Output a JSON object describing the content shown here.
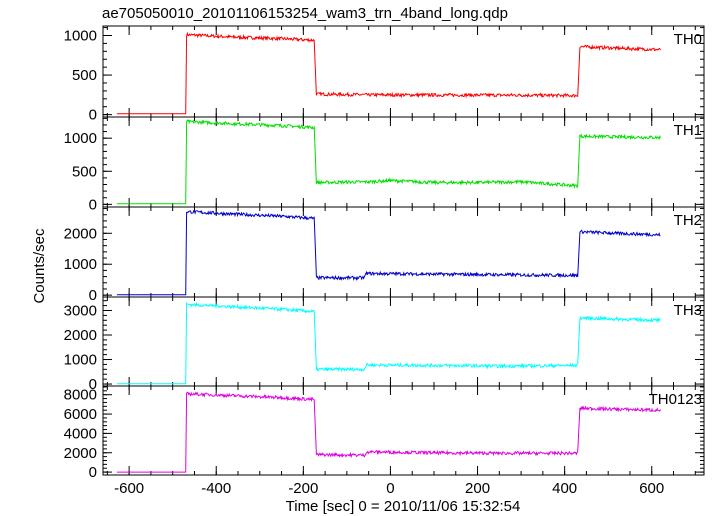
{
  "chart_data": {
    "type": "line",
    "title": "ae705050010_20101106153254_wam3_trn_4band_long.qdp",
    "xlabel": "Time [sec] 0 = 2010/11/06 15:32:54",
    "ylabel": "Counts/sec",
    "xlim": [
      -660,
      720
    ],
    "xticks": [
      -600,
      -400,
      -200,
      0,
      200,
      400,
      600
    ],
    "grid": false,
    "panels": [
      {
        "name": "TH0",
        "color": "#ff0000",
        "ylim": [
          -30,
          1120
        ],
        "yticks": [
          0,
          500,
          1000
        ],
        "segments": [
          {
            "x": [
              -628,
              -470
            ],
            "y": [
              10,
              10
            ]
          },
          {
            "x": [
              -468,
              -360,
              -250,
              -175
            ],
            "y": [
              1010,
              980,
              960,
              940
            ]
          },
          {
            "x": [
              -170,
              -50,
              100,
              300,
              430
            ],
            "y": [
              260,
              250,
              248,
              246,
              240
            ]
          },
          {
            "x": [
              435,
              520,
              620
            ],
            "y": [
              860,
              840,
              820
            ]
          }
        ]
      },
      {
        "name": "TH1",
        "color": "#00e000",
        "ylim": [
          -40,
          1320
        ],
        "yticks": [
          0,
          500,
          1000
        ],
        "segments": [
          {
            "x": [
              -628,
              -470
            ],
            "y": [
              10,
              10
            ]
          },
          {
            "x": [
              -468,
              -360,
              -250,
              -175
            ],
            "y": [
              1250,
              1220,
              1190,
              1160
            ]
          },
          {
            "x": [
              -170,
              -50,
              0,
              100,
              200,
              300,
              430
            ],
            "y": [
              330,
              340,
              360,
              330,
              330,
              340,
              280
            ]
          },
          {
            "x": [
              435,
              520,
              620
            ],
            "y": [
              1030,
              1020,
              1010
            ]
          }
        ]
      },
      {
        "name": "TH2",
        "color": "#0000cc",
        "ylim": [
          -60,
          2850
        ],
        "yticks": [
          0,
          1000,
          2000
        ],
        "segments": [
          {
            "x": [
              -628,
              -470
            ],
            "y": [
              10,
              10
            ]
          },
          {
            "x": [
              -468,
              -360,
              -250,
              -175
            ],
            "y": [
              2700,
              2620,
              2550,
              2480
            ]
          },
          {
            "x": [
              -170,
              -60
            ],
            "y": [
              560,
              560
            ]
          },
          {
            "x": [
              -55,
              100,
              250,
              430
            ],
            "y": [
              700,
              680,
              660,
              640
            ]
          },
          {
            "x": [
              435,
              520,
              620
            ],
            "y": [
              2050,
              2000,
              1950
            ]
          }
        ]
      },
      {
        "name": "TH3",
        "color": "#00ffff",
        "ylim": [
          -80,
          3550
        ],
        "yticks": [
          0,
          1000,
          2000,
          3000
        ],
        "segments": [
          {
            "x": [
              -628,
              -470
            ],
            "y": [
              10,
              10
            ]
          },
          {
            "x": [
              -468,
              -360,
              -250,
              -175
            ],
            "y": [
              3250,
              3150,
              3050,
              2950
            ]
          },
          {
            "x": [
              -170,
              -60
            ],
            "y": [
              600,
              600
            ]
          },
          {
            "x": [
              -55,
              100,
              250,
              430
            ],
            "y": [
              780,
              760,
              730,
              760
            ]
          },
          {
            "x": [
              435,
              520,
              620
            ],
            "y": [
              2700,
              2650,
              2600
            ]
          }
        ]
      },
      {
        "name": "TH0123",
        "color": "#e000e0",
        "ylim": [
          -300,
          8900
        ],
        "yticks": [
          0,
          2000,
          4000,
          6000,
          8000
        ],
        "segments": [
          {
            "x": [
              -628,
              -470
            ],
            "y": [
              0,
              0
            ]
          },
          {
            "x": [
              -468,
              -360,
              -250,
              -175
            ],
            "y": [
              8100,
              7900,
              7700,
              7500
            ]
          },
          {
            "x": [
              -170,
              -60
            ],
            "y": [
              1800,
              1750
            ]
          },
          {
            "x": [
              -55,
              100,
              250,
              430
            ],
            "y": [
              2100,
              2000,
              1950,
              1950
            ]
          },
          {
            "x": [
              435,
              520,
              620
            ],
            "y": [
              6600,
              6500,
              6400
            ]
          }
        ]
      }
    ]
  }
}
